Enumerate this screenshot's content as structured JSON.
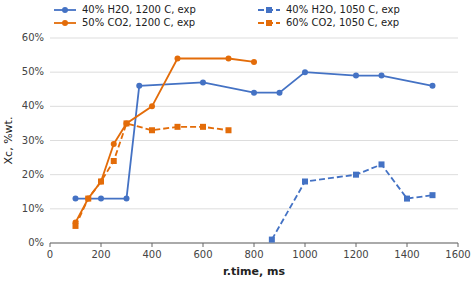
{
  "chart_data": {
    "type": "line",
    "xlabel": "r.time, ms",
    "ylabel": "Xc, %wt.",
    "series": [
      {
        "name": "40% H2O, 1200 C, exp",
        "color": "#4472C4",
        "line_style": "solid",
        "marker": "circle",
        "x": [
          100,
          200,
          300,
          350,
          600,
          800,
          900,
          1000,
          1200,
          1300,
          1500
        ],
        "values": [
          0.13,
          0.13,
          0.13,
          0.46,
          0.47,
          0.44,
          0.44,
          0.5,
          0.49,
          0.49,
          0.46
        ]
      },
      {
        "name": "40% H2O, 1050 C, exp",
        "color": "#4472C4",
        "line_style": "dashed",
        "marker": "square",
        "x": [
          870,
          1000,
          1200,
          1300,
          1400,
          1500
        ],
        "values": [
          0.01,
          0.18,
          0.2,
          0.23,
          0.13,
          0.14
        ]
      },
      {
        "name": "50% CO2, 1200 C, exp",
        "color": "#E36C09",
        "line_style": "solid",
        "marker": "circle",
        "x": [
          100,
          150,
          200,
          250,
          300,
          400,
          500,
          700,
          800
        ],
        "values": [
          0.06,
          0.13,
          0.18,
          0.29,
          0.35,
          0.4,
          0.54,
          0.54,
          0.53
        ]
      },
      {
        "name": "60% CO2, 1050 C, exp",
        "color": "#E36C09",
        "line_style": "dashed",
        "marker": "square",
        "x": [
          100,
          150,
          200,
          250,
          300,
          400,
          500,
          600,
          700
        ],
        "values": [
          0.05,
          0.13,
          0.18,
          0.24,
          0.35,
          0.33,
          0.34,
          0.34,
          0.33
        ]
      }
    ],
    "xlim": [
      0,
      1600
    ],
    "ylim": [
      0,
      0.6
    ],
    "xticks": [
      0,
      200,
      400,
      600,
      800,
      1000,
      1200,
      1400,
      1600
    ],
    "yticks": [
      {
        "value": 0.0,
        "label": "0%"
      },
      {
        "value": 0.1,
        "label": "10%"
      },
      {
        "value": 0.2,
        "label": "20%"
      },
      {
        "value": 0.3,
        "label": "30%"
      },
      {
        "value": 0.4,
        "label": "40%"
      },
      {
        "value": 0.5,
        "label": "50%"
      },
      {
        "value": 0.6,
        "label": "60%"
      }
    ],
    "grid": "y",
    "legend": "top"
  }
}
